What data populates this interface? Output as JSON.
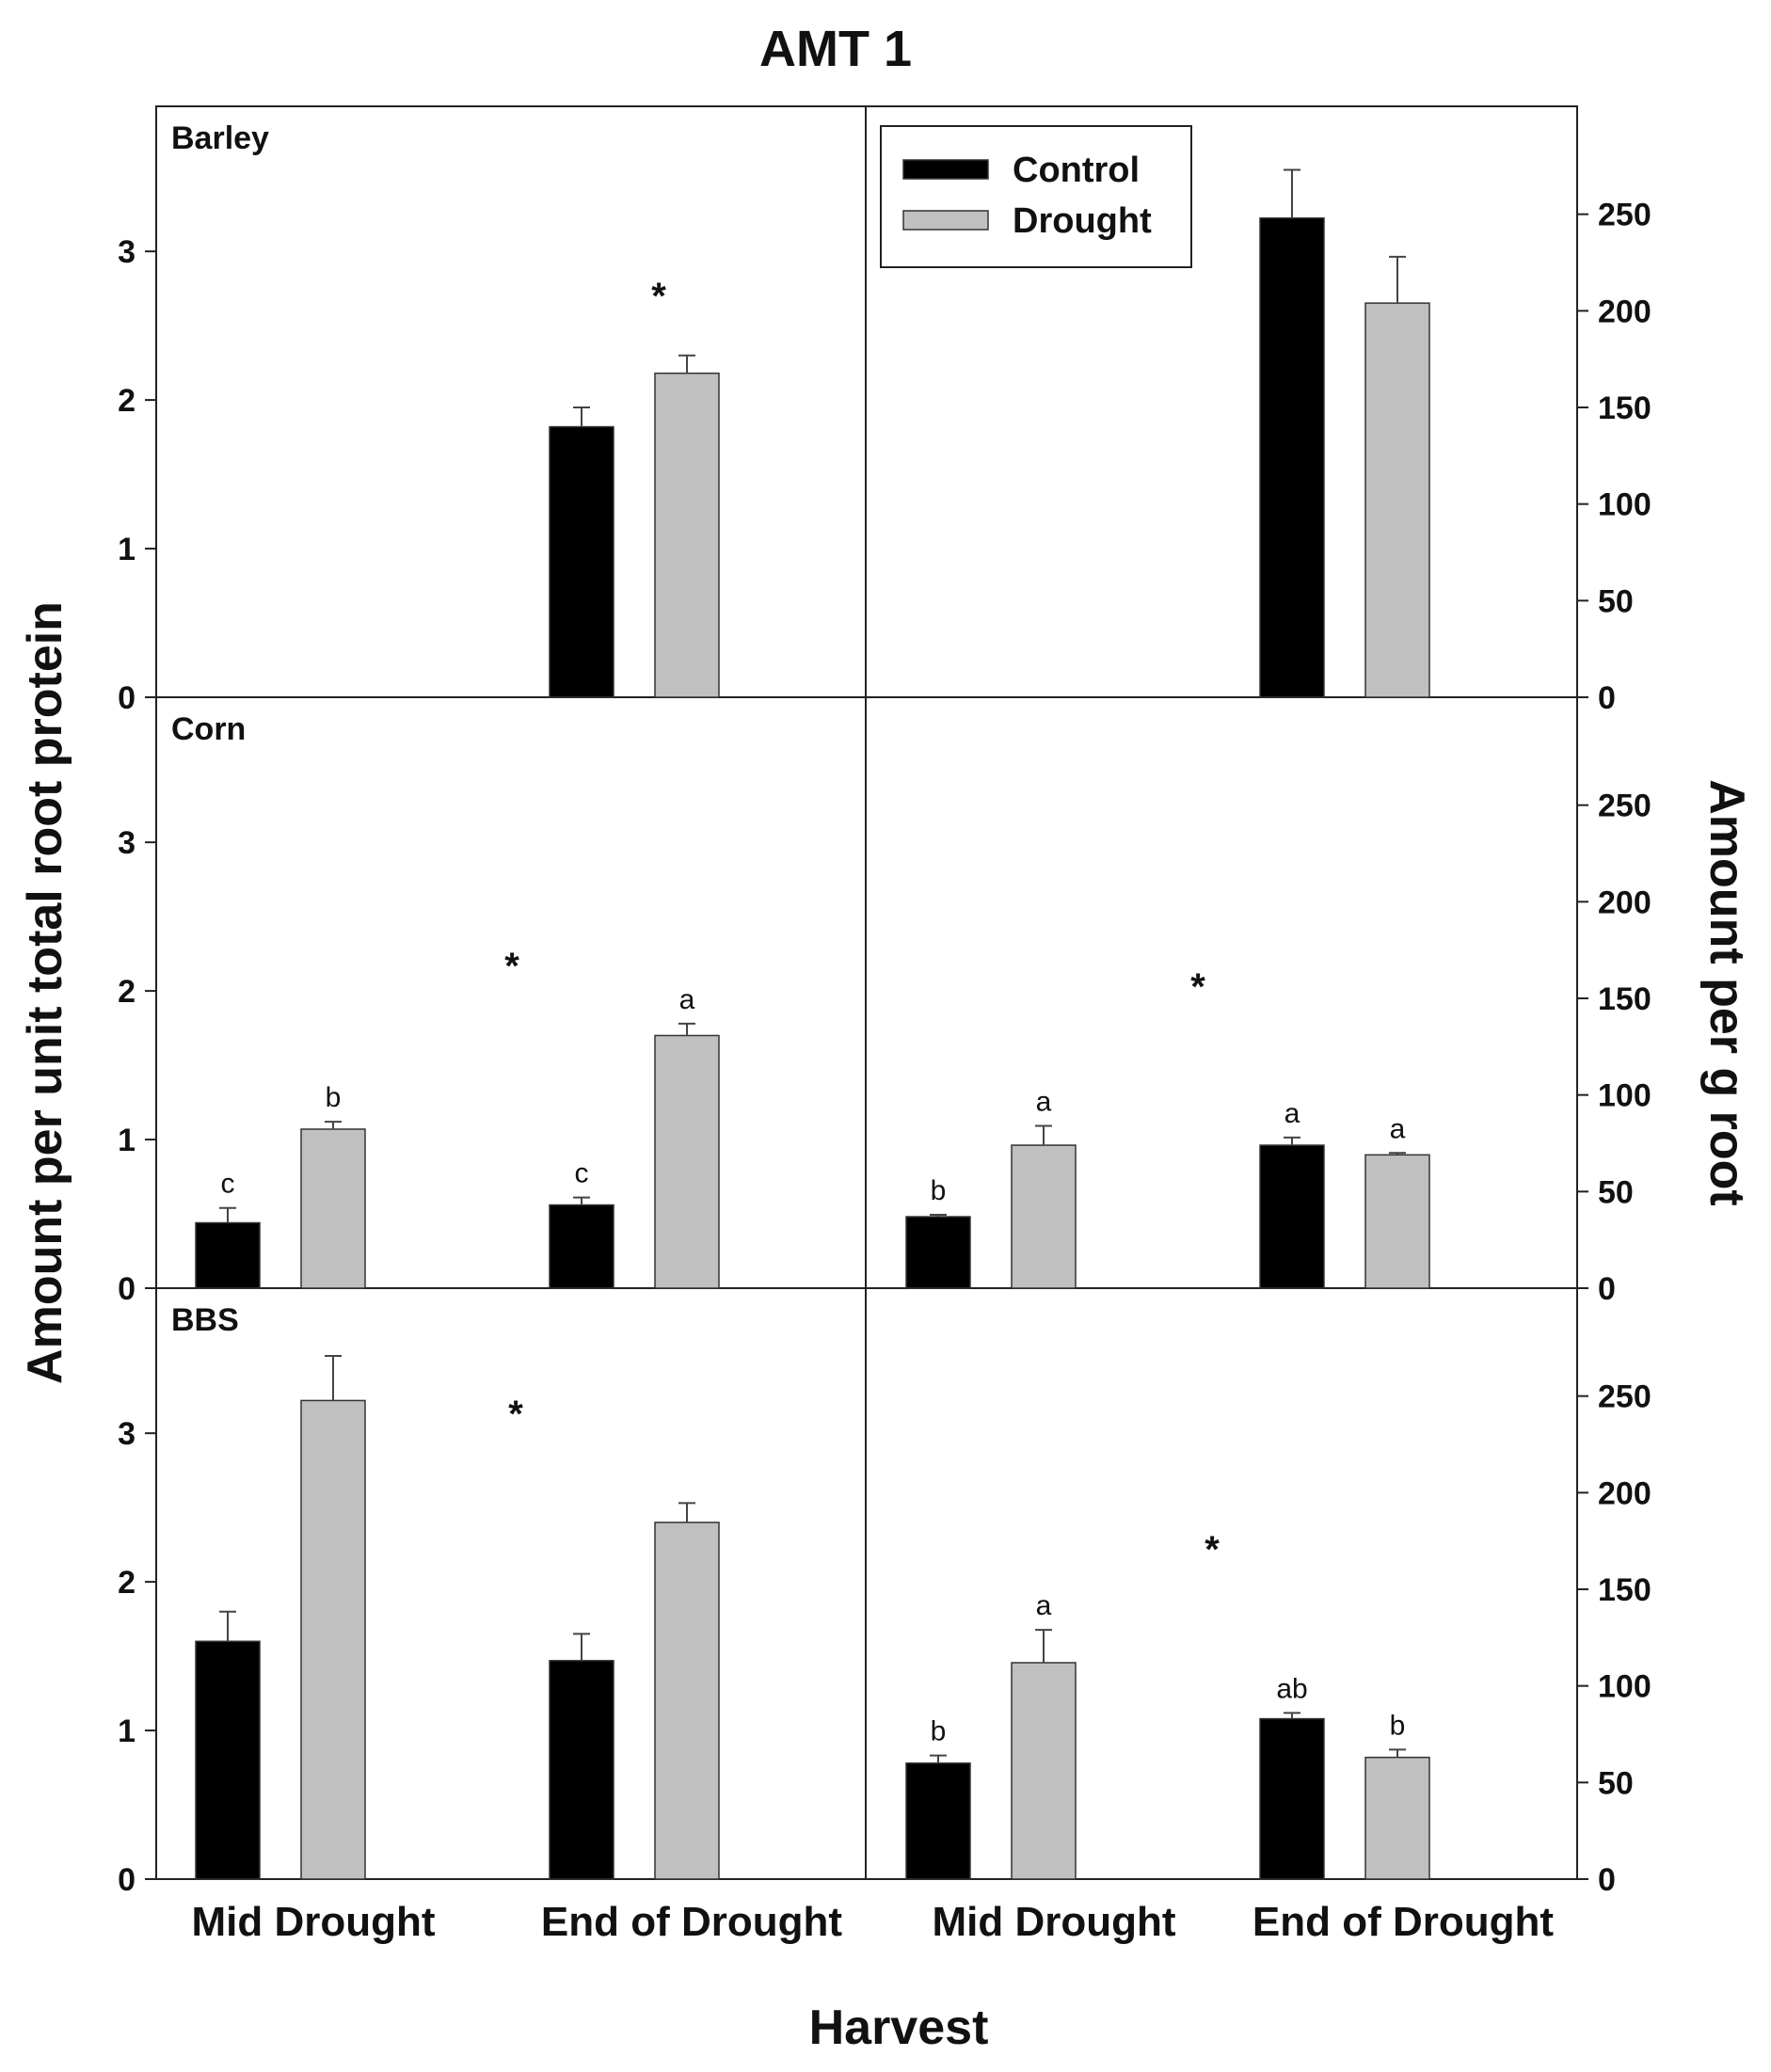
{
  "chart_data": {
    "type": "bar",
    "title": "AMT 1",
    "xlabel": "Harvest",
    "ylabel_left": "Amount per unit total root protein",
    "ylabel_right": "Amount per g root",
    "categories": [
      "Mid Drought",
      "End of Drought"
    ],
    "left_axis": {
      "ylim": [
        0,
        3.9
      ],
      "ticks": [
        "0",
        "1",
        "2",
        "3"
      ]
    },
    "right_axis": {
      "ylim": [
        0,
        300
      ],
      "ticks": [
        "0",
        "50",
        "100",
        "150",
        "200",
        "250"
      ]
    },
    "legend": {
      "position": "top-right of upper-left panel",
      "entries": [
        "Control",
        "Drought"
      ]
    },
    "colors": {
      "Control": "#000000",
      "Drought": "#c0c0c0"
    },
    "panels": [
      {
        "name": "Barley",
        "show_name": true,
        "left": {
          "series": [
            {
              "name": "Control",
              "values": [
                null,
                1.82
              ],
              "errors": [
                null,
                0.13
              ],
              "letters": [
                "",
                ""
              ]
            },
            {
              "name": "Drought",
              "values": [
                null,
                2.18
              ],
              "errors": [
                null,
                0.12
              ],
              "letters": [
                "",
                ""
              ]
            }
          ],
          "star": "*"
        },
        "right": {
          "series": [
            {
              "name": "Control",
              "values": [
                null,
                248
              ],
              "errors": [
                null,
                25
              ],
              "letters": [
                "",
                ""
              ]
            },
            {
              "name": "Drought",
              "values": [
                null,
                204
              ],
              "errors": [
                null,
                24
              ],
              "letters": [
                "",
                ""
              ]
            }
          ],
          "star": ""
        }
      },
      {
        "name": "Corn",
        "show_name": true,
        "left": {
          "series": [
            {
              "name": "Control",
              "values": [
                0.44,
                0.56
              ],
              "errors": [
                0.1,
                0.05
              ],
              "letters": [
                "c",
                "c"
              ]
            },
            {
              "name": "Drought",
              "values": [
                1.07,
                1.7
              ],
              "errors": [
                0.05,
                0.08
              ],
              "letters": [
                "b",
                "a"
              ]
            }
          ],
          "star": "*"
        },
        "right": {
          "series": [
            {
              "name": "Control",
              "values": [
                37,
                74
              ],
              "errors": [
                1,
                4
              ],
              "letters": [
                "b",
                "a"
              ]
            },
            {
              "name": "Drought",
              "values": [
                74,
                69
              ],
              "errors": [
                10,
                1
              ],
              "letters": [
                "a",
                "a"
              ]
            }
          ],
          "star": "*"
        }
      },
      {
        "name": "BBS",
        "show_name": true,
        "left": {
          "series": [
            {
              "name": "Control",
              "values": [
                1.6,
                1.47
              ],
              "errors": [
                0.2,
                0.18
              ],
              "letters": [
                "",
                ""
              ]
            },
            {
              "name": "Drought",
              "values": [
                3.22,
                2.4
              ],
              "errors": [
                0.3,
                0.13
              ],
              "letters": [
                "",
                ""
              ]
            }
          ],
          "star": "*"
        },
        "right": {
          "series": [
            {
              "name": "Control",
              "values": [
                60,
                83
              ],
              "errors": [
                4,
                3
              ],
              "letters": [
                "b",
                "ab"
              ]
            },
            {
              "name": "Drought",
              "values": [
                112,
                63
              ],
              "errors": [
                17,
                4
              ],
              "letters": [
                "a",
                "b"
              ]
            }
          ],
          "star": "*"
        }
      }
    ]
  }
}
